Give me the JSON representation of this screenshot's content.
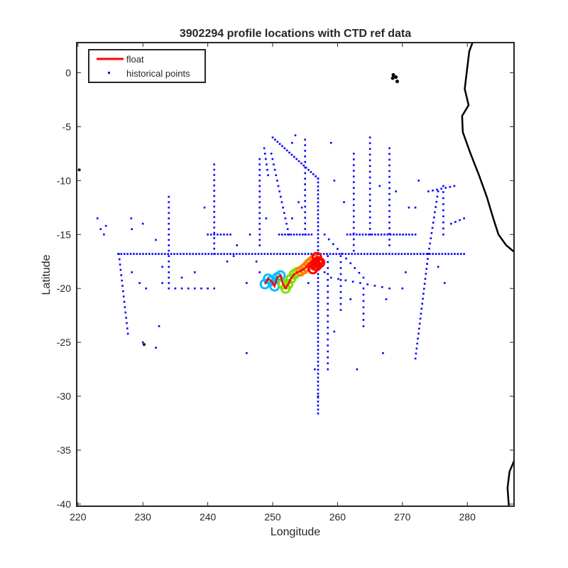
{
  "chart_data": {
    "type": "scatter",
    "title": "3902294 profile locations with CTD ref data",
    "xlabel": "Longitude",
    "ylabel": "Latitude",
    "xlim": [
      219.8,
      287.2
    ],
    "ylim": [
      -40.2,
      2.8
    ],
    "xticks": [
      220,
      230,
      240,
      250,
      260,
      270,
      280
    ],
    "yticks": [
      0,
      -5,
      -10,
      -15,
      -20,
      -25,
      -30,
      -35,
      -40
    ],
    "grid": false,
    "legend": {
      "placement": "top-left",
      "entries": [
        {
          "label": "float",
          "color": "#ff0000",
          "marker": "line"
        },
        {
          "label": "historical points",
          "color": "#0000ff",
          "marker": "dot"
        }
      ]
    },
    "colors": {
      "float": "#ff0000",
      "historical": "#0000ff",
      "coast": "#000000"
    },
    "series": [
      {
        "name": "historical points",
        "segments": [
          {
            "from": [
              226.2,
              -16.8
            ],
            "to": [
              279.5,
              -16.8
            ],
            "n": 112
          },
          {
            "from": [
              257.0,
              -9.8
            ],
            "to": [
              257.0,
              -31.6
            ],
            "n": 60
          },
          {
            "from": [
              241.0,
              -8.5
            ],
            "to": [
              241.0,
              -16.8
            ],
            "n": 18
          },
          {
            "from": [
              226.3,
              -16.8
            ],
            "to": [
              227.7,
              -24.2
            ],
            "n": 16
          },
          {
            "from": [
              234.0,
              -11.5
            ],
            "to": [
              234.0,
              -20.0
            ],
            "n": 18
          },
          {
            "from": [
              274.0,
              -16.8
            ],
            "to": [
              272.0,
              -26.5
            ],
            "n": 22
          },
          {
            "from": [
              274.0,
              -16.8
            ],
            "to": [
              275.5,
              -11.0
            ],
            "n": 13
          },
          {
            "from": [
              276.3,
              -10.5
            ],
            "to": [
              276.3,
              -15.0
            ],
            "n": 9
          },
          {
            "from": [
              250.0,
              -6.0
            ],
            "to": [
              257.0,
              -9.8
            ],
            "n": 20
          },
          {
            "from": [
              248.7,
              -7.0
            ],
            "to": [
              249.3,
              -9.5
            ],
            "n": 6
          },
          {
            "from": [
              248.0,
              -8.0
            ],
            "to": [
              248.0,
              -16.0
            ],
            "n": 17
          },
          {
            "from": [
              249.8,
              -7.5
            ],
            "to": [
              252.5,
              -15.0
            ],
            "n": 16
          },
          {
            "from": [
              255.0,
              -6.2
            ],
            "to": [
              255.0,
              -15.0
            ],
            "n": 18
          },
          {
            "from": [
              265.0,
              -6.0
            ],
            "to": [
              265.0,
              -15.0
            ],
            "n": 18
          },
          {
            "from": [
              268.0,
              -7.0
            ],
            "to": [
              268.0,
              -16.0
            ],
            "n": 18
          },
          {
            "from": [
              262.5,
              -7.5
            ],
            "to": [
              262.5,
              -16.5
            ],
            "n": 18
          },
          {
            "from": [
              261.5,
              -15.0
            ],
            "to": [
              272.0,
              -15.0
            ],
            "n": 23
          },
          {
            "from": [
              251.0,
              -15.0
            ],
            "to": [
              256.0,
              -15.0
            ],
            "n": 12
          },
          {
            "from": [
              240.0,
              -15.0
            ],
            "to": [
              243.5,
              -15.0
            ],
            "n": 8
          },
          {
            "from": [
              235.0,
              -20.0
            ],
            "to": [
              241.0,
              -20.0
            ],
            "n": 7
          },
          {
            "from": [
              258.5,
              -17.0
            ],
            "to": [
              258.5,
              -27.5
            ],
            "n": 20
          },
          {
            "from": [
              260.5,
              -17.0
            ],
            "to": [
              260.5,
              -22.0
            ],
            "n": 10
          },
          {
            "from": [
              259.0,
              -19.0
            ],
            "to": [
              268.0,
              -20.0
            ],
            "n": 9
          },
          {
            "from": [
              258.0,
              -15.0
            ],
            "to": [
              264.0,
              -19.0
            ],
            "n": 10
          },
          {
            "from": [
              264.0,
              -20.0
            ],
            "to": [
              264.0,
              -23.5
            ],
            "n": 7
          },
          {
            "from": [
              277.5,
              -14.0
            ],
            "to": [
              279.5,
              -13.5
            ],
            "n": 4
          },
          {
            "from": [
              274.0,
              -11.0
            ],
            "to": [
              278.0,
              -10.5
            ],
            "n": 7
          }
        ],
        "points": [
          [
            223.0,
            -13.5
          ],
          [
            223.5,
            -14.5
          ],
          [
            224.0,
            -15.0
          ],
          [
            224.3,
            -14.2
          ],
          [
            228.2,
            -13.5
          ],
          [
            228.3,
            -14.5
          ],
          [
            230.0,
            -14.0
          ],
          [
            228.3,
            -18.5
          ],
          [
            229.5,
            -19.5
          ],
          [
            230.5,
            -20.0
          ],
          [
            232.5,
            -23.5
          ],
          [
            232.0,
            -25.5
          ],
          [
            230.0,
            -25.0
          ],
          [
            246.0,
            -26.0
          ],
          [
            246.0,
            -19.5
          ],
          [
            233.0,
            -19.5
          ],
          [
            233.0,
            -18.0
          ],
          [
            232.0,
            -15.5
          ],
          [
            236.0,
            -19.0
          ],
          [
            238.0,
            -18.5
          ],
          [
            243.0,
            -17.5
          ],
          [
            244.0,
            -17.0
          ],
          [
            253.5,
            -5.8
          ],
          [
            253.0,
            -6.5
          ],
          [
            249.0,
            -13.5
          ],
          [
            253.0,
            -13.5
          ],
          [
            254.0,
            -12.0
          ],
          [
            254.5,
            -12.5
          ],
          [
            259.0,
            -6.5
          ],
          [
            259.5,
            -10.0
          ],
          [
            261.0,
            -12.0
          ],
          [
            266.5,
            -10.5
          ],
          [
            269.0,
            -11.0
          ],
          [
            271.0,
            -12.5
          ],
          [
            272.0,
            -12.5
          ],
          [
            272.5,
            -10.0
          ],
          [
            275.5,
            -18.0
          ],
          [
            276.5,
            -19.5
          ],
          [
            270.5,
            -18.5
          ],
          [
            270.0,
            -20.0
          ],
          [
            262.0,
            -21.0
          ],
          [
            259.5,
            -24.0
          ],
          [
            263.0,
            -27.5
          ],
          [
            267.0,
            -26.0
          ],
          [
            267.5,
            -21.0
          ],
          [
            247.5,
            -17.5
          ],
          [
            248.0,
            -18.5
          ],
          [
            255.5,
            -19.5
          ],
          [
            258.0,
            -18.5
          ],
          [
            256.5,
            -27.5
          ],
          [
            257.0,
            -30.0
          ],
          [
            246.5,
            -15.0
          ],
          [
            244.5,
            -16.0
          ],
          [
            239.5,
            -12.5
          ]
        ]
      },
      {
        "name": "float",
        "trajectory": [
          [
            248.8,
            -19.6
          ],
          [
            249.3,
            -19.1
          ],
          [
            249.8,
            -19.3
          ],
          [
            250.3,
            -19.8
          ],
          [
            250.7,
            -19.0
          ],
          [
            251.2,
            -18.8
          ],
          [
            251.6,
            -19.6
          ],
          [
            252.0,
            -20.0
          ],
          [
            252.4,
            -19.6
          ],
          [
            252.8,
            -19.1
          ],
          [
            253.3,
            -18.7
          ],
          [
            253.8,
            -18.5
          ],
          [
            254.3,
            -18.4
          ],
          [
            254.8,
            -18.2
          ],
          [
            255.2,
            -18.0
          ],
          [
            255.6,
            -17.7
          ],
          [
            256.0,
            -17.5
          ],
          [
            256.4,
            -17.3
          ],
          [
            256.8,
            -17.1
          ],
          [
            257.0,
            -17.5
          ],
          [
            256.6,
            -17.9
          ],
          [
            256.2,
            -18.2
          ],
          [
            256.8,
            -17.9
          ],
          [
            257.3,
            -17.6
          ]
        ],
        "cluster_colors": [
          "#00bfff",
          "#7fdf00",
          "#ff8000",
          "#ff0000"
        ]
      }
    ]
  }
}
